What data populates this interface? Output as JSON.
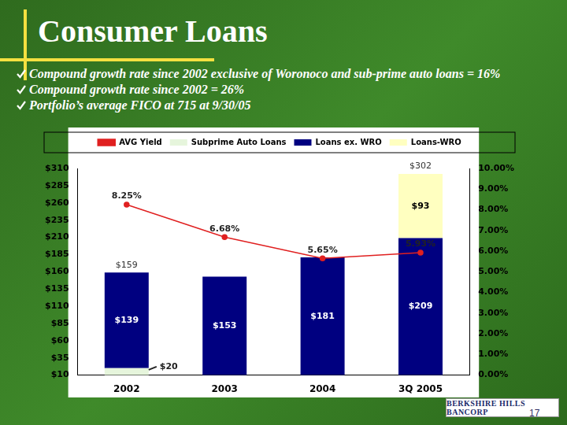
{
  "title": "Consumer Loans",
  "bullets": [
    "Compound growth rate since 2002 exclusive of Woronoco and sub-prime auto loans = 16%",
    "Compound growth rate since 2002 = 26%",
    "Portfolio’s average FICO at 715 at 9/30/05"
  ],
  "footer": {
    "logo": "BERKSHIRE HILLS BANCORP",
    "page": "17"
  },
  "chart_data": {
    "type": "bar",
    "stacked": true,
    "categories": [
      "2002",
      "2003",
      "2004",
      "3Q 2005"
    ],
    "series": [
      {
        "name": "Subprime Auto Loans",
        "type": "bar",
        "color": "#e6f5dc",
        "values": [
          20,
          null,
          null,
          null
        ],
        "value_labels": [
          "$20",
          null,
          null,
          null
        ]
      },
      {
        "name": "Loans ex. WRO",
        "type": "bar",
        "color": "#000080",
        "values": [
          139,
          153,
          181,
          209
        ],
        "value_labels": [
          "$139",
          "$153",
          "$181",
          "$209"
        ]
      },
      {
        "name": "Loans-WRO",
        "type": "bar",
        "color": "#ffffc0",
        "values": [
          null,
          null,
          null,
          93
        ],
        "value_labels": [
          null,
          null,
          null,
          "$93"
        ]
      },
      {
        "name": "AVG Yield",
        "type": "line",
        "axis": "y2",
        "color": "#e02020",
        "marker": "circle",
        "values": [
          8.25,
          6.68,
          5.65,
          5.93
        ],
        "value_labels": [
          "8.25%",
          "6.68%",
          "5.65%",
          "5.93%"
        ]
      }
    ],
    "totals": [
      159,
      null,
      null,
      302
    ],
    "totals_labels": [
      "$159",
      null,
      null,
      "$302"
    ],
    "ylim": [
      10,
      310
    ],
    "yticks": [
      {
        "value": 10,
        "label": "$10"
      },
      {
        "value": 35,
        "label": "$35"
      },
      {
        "value": 60,
        "label": "$60"
      },
      {
        "value": 85,
        "label": "$85"
      },
      {
        "value": 110,
        "label": "$110"
      },
      {
        "value": 135,
        "label": "$135"
      },
      {
        "value": 160,
        "label": "$160"
      },
      {
        "value": 185,
        "label": "$185"
      },
      {
        "value": 210,
        "label": "$210"
      },
      {
        "value": 235,
        "label": "$235"
      },
      {
        "value": 260,
        "label": "$260"
      },
      {
        "value": 285,
        "label": "$285"
      },
      {
        "value": 310,
        "label": "$310"
      }
    ],
    "y2lim": [
      0,
      10
    ],
    "y2ticks": [
      {
        "value": 0,
        "label": "0.00%"
      },
      {
        "value": 1,
        "label": "1.00%"
      },
      {
        "value": 2,
        "label": "2.00%"
      },
      {
        "value": 3,
        "label": "3.00%"
      },
      {
        "value": 4,
        "label": "4.00%"
      },
      {
        "value": 5,
        "label": "5.00%"
      },
      {
        "value": 6,
        "label": "6.00%"
      },
      {
        "value": 7,
        "label": "7.00%"
      },
      {
        "value": 8,
        "label": "8.00%"
      },
      {
        "value": 9,
        "label": "9.00%"
      },
      {
        "value": 10,
        "label": "10.00%"
      }
    ],
    "grid": false,
    "legend": "top",
    "data_labels": true
  }
}
